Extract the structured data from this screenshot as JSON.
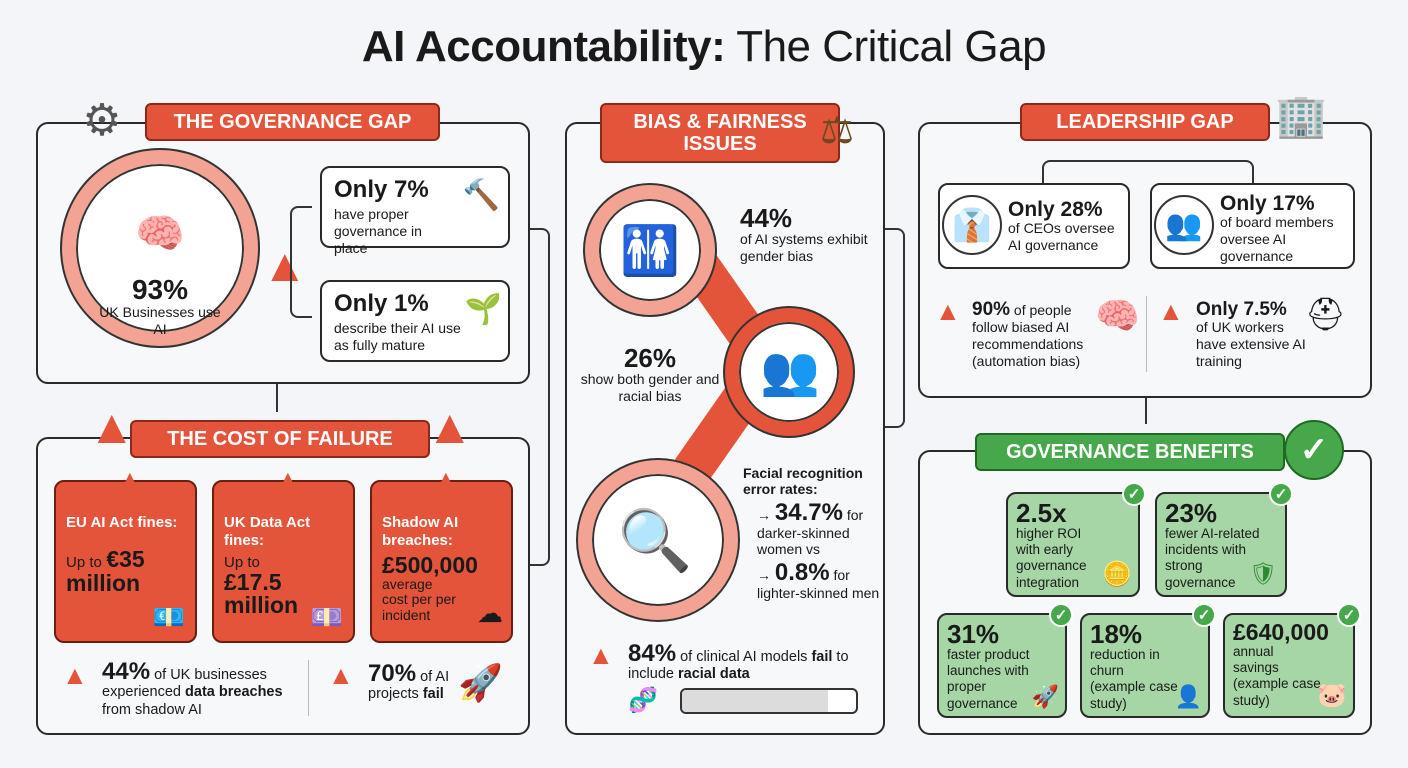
{
  "title": {
    "bold": "AI Accountability:",
    "rest": " The Critical Gap"
  },
  "governance": {
    "header": "THE GOVERNANCE GAP",
    "main_value": "93%",
    "main_text": "UK Businesses use AI",
    "items": [
      {
        "value": "Only 7%",
        "text": "have proper governance in place"
      },
      {
        "value": "Only 1%",
        "text": "describe their AI use as fully mature"
      }
    ]
  },
  "cost": {
    "header": "THE COST OF FAILURE",
    "cards": [
      {
        "label": "EU AI Act fines:",
        "prefix": "Up to",
        "value": "€35 million"
      },
      {
        "label": "UK Data Act fines:",
        "prefix": "Up to",
        "value": "£17.5 million"
      },
      {
        "label": "Shadow AI breaches:",
        "value": "£500,000",
        "suffix": "average cost per per incident"
      }
    ],
    "stats": [
      {
        "value": "44%",
        "text1": " of UK businesses experienced ",
        "bold": "data breaches",
        "text2": " from shadow AI"
      },
      {
        "value": "70%",
        "text1": " of AI projects ",
        "bold": "fail"
      }
    ]
  },
  "bias": {
    "header": "BIAS & FAIRNESS ISSUES",
    "stat1": {
      "value": "44%",
      "text": "of AI systems exhibit gender bias"
    },
    "stat2": {
      "value": "26%",
      "text": "show both gender and racial bias"
    },
    "facial": {
      "title": "Facial recognition error rates:",
      "v1": "34.7%",
      "t1a": " for",
      "t1b": "darker-skinned women vs",
      "v2": "0.8%",
      "t2a": " for",
      "t2b": "lighter-skinned men"
    },
    "clinical": {
      "value": "84%",
      "t1": " of clinical AI models ",
      "b1": "fail",
      "t2": " to include ",
      "b2": "racial data",
      "progress": 84
    }
  },
  "leadership": {
    "header": "LEADERSHIP GAP",
    "ceo": {
      "value": "Only 28%",
      "text": "of CEOs oversee AI governance"
    },
    "board": {
      "value": "Only 17%",
      "text": "of board members oversee AI governance"
    },
    "people": {
      "value": "90%",
      "text": " of people follow biased AI recommendations (automation bias)"
    },
    "workers": {
      "value": "Only 7.5%",
      "text": "of UK workers have extensive AI training"
    }
  },
  "benefits": {
    "header": "GOVERNANCE BENEFITS",
    "cards": [
      {
        "value": "2.5x",
        "text": "higher ROI with early governance integration"
      },
      {
        "value": "23%",
        "text": "fewer AI-related incidents with strong governance"
      },
      {
        "value": "31%",
        "text": "faster product launches with proper governance"
      },
      {
        "value": "18%",
        "text": "reduction in churn (example case study)"
      },
      {
        "value": "£640,000",
        "text": "annual savings (example case study)"
      }
    ]
  },
  "colors": {
    "red": "#e4543b",
    "green": "#46a84a",
    "pink": "#f2a394"
  }
}
